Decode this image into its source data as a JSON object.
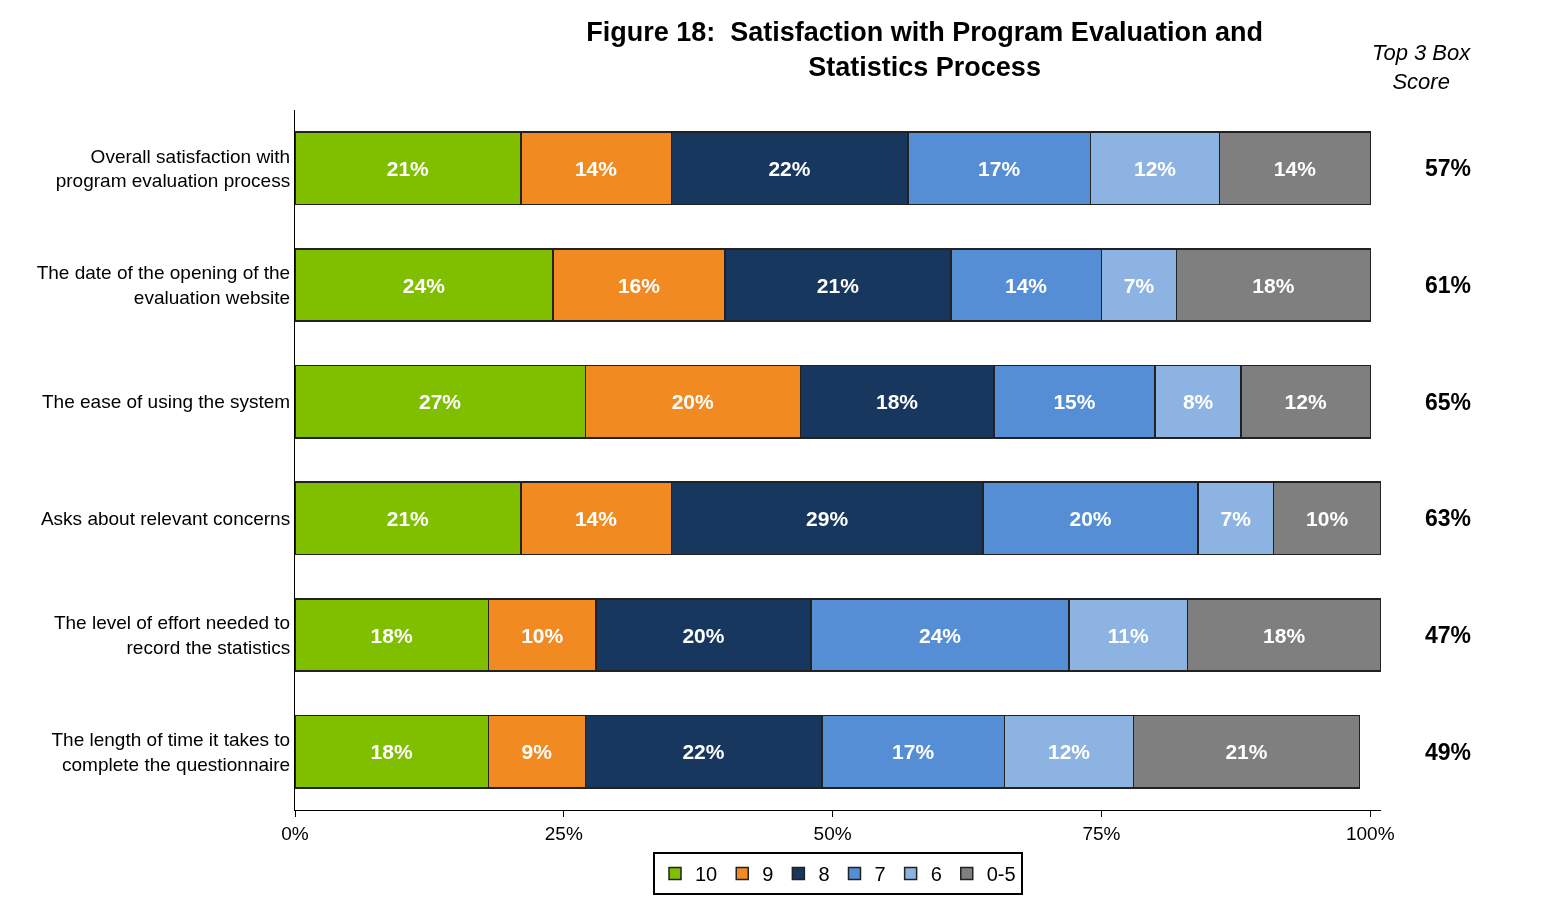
{
  "chart_data": {
    "type": "bar",
    "title": "Figure 18:  Satisfaction with Program Evaluation and Statistics Process",
    "orientation": "horizontal",
    "stacked": true,
    "legend": "bottom",
    "grid": false,
    "categories": [
      "Overall satisfaction with program evaluation process",
      "The date of the opening of the evaluation website",
      "The ease of using the system",
      "Asks about relevant concerns",
      "The level of effort needed to record the statistics",
      "The length of time it takes to complete the questionnaire"
    ],
    "xlim": [
      0,
      101
    ],
    "xticks": [
      {
        "value": 0,
        "label": "0%"
      },
      {
        "value": 25,
        "label": "25%"
      },
      {
        "value": 50,
        "label": "50%"
      },
      {
        "value": 75,
        "label": "75%"
      },
      {
        "value": 100,
        "label": "100%"
      }
    ],
    "series": [
      {
        "name": "10",
        "color": "#7fbf00",
        "values": [
          21,
          24,
          27,
          21,
          18,
          18
        ],
        "value_labels": [
          "21%",
          "24%",
          "27%",
          "21%",
          "18%",
          "18%"
        ]
      },
      {
        "name": "9",
        "color": "#f28a22",
        "values": [
          14,
          16,
          20,
          14,
          10,
          9
        ],
        "value_labels": [
          "14%",
          "16%",
          "20%",
          "14%",
          "10%",
          "9%"
        ]
      },
      {
        "name": "8",
        "color": "#17375e",
        "values": [
          22,
          21,
          18,
          29,
          20,
          22
        ],
        "value_labels": [
          "22%",
          "21%",
          "18%",
          "29%",
          "20%",
          "22%"
        ]
      },
      {
        "name": "7",
        "color": "#558ed5",
        "values": [
          17,
          14,
          15,
          20,
          24,
          17
        ],
        "value_labels": [
          "17%",
          "14%",
          "15%",
          "20%",
          "24%",
          "17%"
        ]
      },
      {
        "name": "6",
        "color": "#8db3e2",
        "values": [
          12,
          7,
          8,
          7,
          11,
          12
        ],
        "value_labels": [
          "12%",
          "7%",
          "8%",
          "7%",
          "11%",
          "12%"
        ]
      },
      {
        "name": "0-5",
        "color": "#7f7f7f",
        "values": [
          14,
          18,
          12,
          10,
          18,
          21
        ],
        "value_labels": [
          "14%",
          "18%",
          "12%",
          "10%",
          "18%",
          "21%"
        ]
      }
    ],
    "annotations": [
      "Top 3 Box Score",
      "57%",
      "61%",
      "65%",
      "63%",
      "47%",
      "49%"
    ]
  }
}
